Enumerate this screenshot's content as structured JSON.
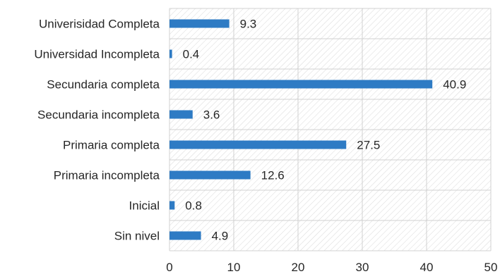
{
  "chart_data": {
    "type": "bar",
    "orientation": "horizontal",
    "categories": [
      "Univerisidad Completa",
      "Universidad Incompleta",
      "Secundaria completa",
      "Secundaria incompleta",
      "Primaria completa",
      "Primaria incompleta",
      "Inicial",
      "Sin nivel"
    ],
    "values": [
      9.3,
      0.4,
      40.9,
      3.6,
      27.5,
      12.6,
      0.8,
      4.9
    ],
    "value_labels": [
      "9.3",
      "0.4",
      "40.9",
      "3.6",
      "27.5",
      "12.6",
      "0.8",
      "4.9"
    ],
    "title": "",
    "xlabel": "",
    "ylabel": "",
    "xlim": [
      0,
      50
    ],
    "x_ticks": [
      "0",
      "10",
      "20",
      "30",
      "40",
      "50"
    ],
    "grid": true,
    "legend": "none",
    "bar_color": "#2E7BC4",
    "background_pattern": "diagonal-hatch"
  }
}
